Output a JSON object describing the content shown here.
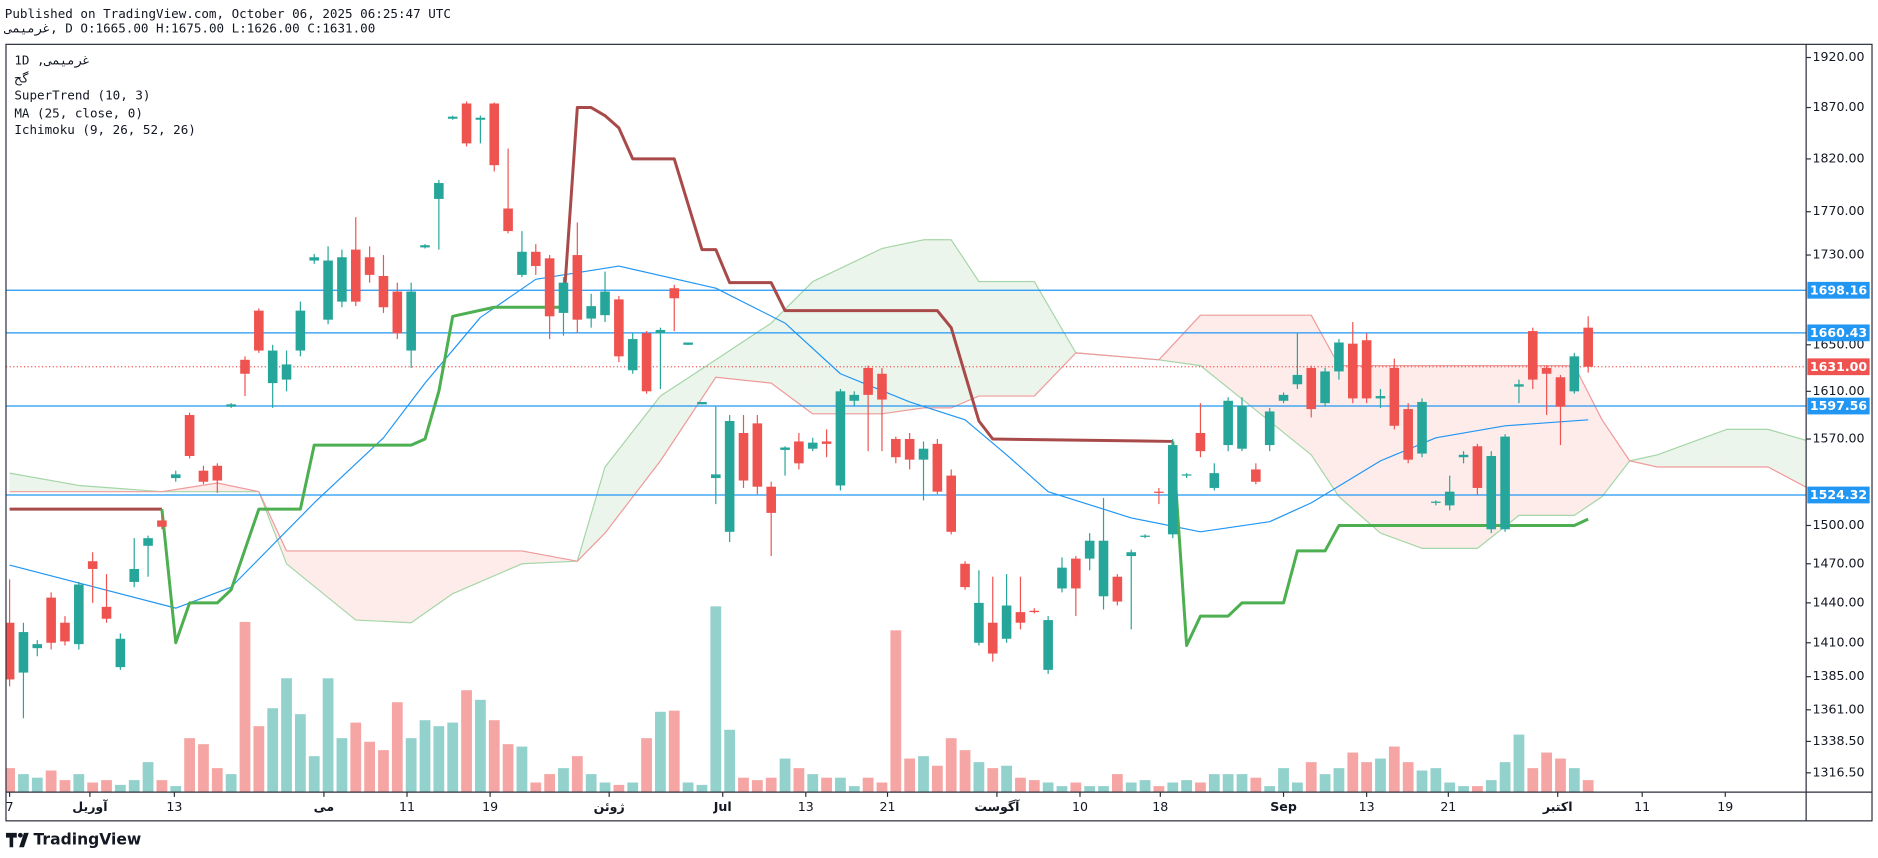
{
  "header": {
    "published": "Published on TradingView.com, October 06, 2025 06:25:47 UTC",
    "symbol_line": "غرمیمی, D O:1665.00 H:1675.00 L:1626.00 C:1631.00"
  },
  "footer": {
    "brand": "TradingView"
  },
  "chart_data": {
    "type": "candlestick",
    "legend_title": "1D  ,غرمیمی",
    "exchange": "گح",
    "indicator_labels": [
      "SuperTrend (10, 3)",
      "MA (25, close, 0)",
      "Ichimoku (9, 26, 52, 26)"
    ],
    "log_scale": true,
    "grid": false,
    "up_color": "#26a69a",
    "down_color": "#ef5350",
    "volume_up_color": "#93d2cc",
    "volume_down_color": "#f5a6a4",
    "xlim": [
      -0.26,
      129.74
    ],
    "ylim": [
      1303.2,
      1933.4
    ],
    "yticks": [
      {
        "value": 1920,
        "label": "1920.00"
      },
      {
        "value": 1870,
        "label": "1870.00"
      },
      {
        "value": 1820,
        "label": "1820.00"
      },
      {
        "value": 1770,
        "label": "1770.00"
      },
      {
        "value": 1730,
        "label": "1730.00"
      },
      {
        "value": 1650,
        "label": "1650.00"
      },
      {
        "value": 1610,
        "label": "1610.00"
      },
      {
        "value": 1570,
        "label": "1570.00"
      },
      {
        "value": 1500,
        "label": "1500.00"
      },
      {
        "value": 1470,
        "label": "1470.00"
      },
      {
        "value": 1440,
        "label": "1440.00"
      },
      {
        "value": 1410,
        "label": "1410.00"
      },
      {
        "value": 1385,
        "label": "1385.00"
      },
      {
        "value": 1361,
        "label": "1361.00"
      },
      {
        "value": 1338.5,
        "label": "1338.50"
      },
      {
        "value": 1316.5,
        "label": "1316.50"
      }
    ],
    "xticks": [
      {
        "value": 0,
        "label": "7"
      },
      {
        "value": 5.8,
        "label": "آوریل"
      },
      {
        "value": 11.9,
        "label": "13"
      },
      {
        "value": 22.7,
        "label": "می"
      },
      {
        "value": 28.7,
        "label": "11"
      },
      {
        "value": 34.7,
        "label": "19"
      },
      {
        "value": 43.3,
        "label": "ژوئن"
      },
      {
        "value": 51.5,
        "label": "Jul"
      },
      {
        "value": 57.5,
        "label": "13"
      },
      {
        "value": 63.4,
        "label": "21"
      },
      {
        "value": 71.3,
        "label": "آگوست"
      },
      {
        "value": 77.3,
        "label": "10"
      },
      {
        "value": 83.1,
        "label": "18"
      },
      {
        "value": 92,
        "label": "Sep"
      },
      {
        "value": 98,
        "label": "13"
      },
      {
        "value": 103.9,
        "label": "21"
      },
      {
        "value": 111.8,
        "label": "اکتبر"
      },
      {
        "value": 117.9,
        "label": "11"
      },
      {
        "value": 123.9,
        "label": "19"
      }
    ],
    "open": [
      1425,
      1388,
      1406,
      1444,
      1425,
      1409,
      1472,
      1437,
      1392,
      1456,
      1484,
      1504,
      1538,
      1590,
      1544,
      1548,
      1597,
      1637,
      1680,
      1617,
      1620,
      1645,
      1725,
      1672,
      1688,
      1735,
      1728,
      1711,
      1697,
      1645,
      1737,
      1782,
      1859,
      1874,
      1858,
      1874,
      1773,
      1712,
      1733,
      1727,
      1678,
      1730,
      1673,
      1676,
      1690,
      1628,
      1660,
      1660,
      1700,
      1650,
      1599,
      1538,
      1495,
      1575,
      1583,
      1531,
      1561,
      1568,
      1562,
      1568,
      1532,
      1602,
      1630,
      1625,
      1570,
      1570,
      1553,
      1566,
      1540,
      1470,
      1410,
      1425,
      1413,
      1433,
      1434,
      1390,
      1451,
      1474,
      1474,
      1445,
      1460,
      1476,
      1491,
      1527,
      1493,
      1540,
      1575,
      1530,
      1565,
      1562,
      1545,
      1565,
      1602,
      1616,
      1630,
      1600,
      1627,
      1651,
      1654,
      1604,
      1630,
      1595,
      1558,
      1518,
      1516,
      1555,
      1564,
      1497,
      1497,
      1614,
      1662,
      1630,
      1622,
      1610,
      1665
    ],
    "high": [
      1458,
      1425,
      1412,
      1448,
      1430,
      1456,
      1479,
      1462,
      1417,
      1490,
      1492,
      1508,
      1544,
      1592,
      1548,
      1550,
      1600,
      1640,
      1682,
      1650,
      1645,
      1688,
      1731,
      1738,
      1735,
      1765,
      1738,
      1730,
      1705,
      1705,
      1740,
      1800,
      1862,
      1876,
      1862,
      1875,
      1830,
      1752,
      1740,
      1730,
      1710,
      1760,
      1695,
      1715,
      1693,
      1660,
      1662,
      1665,
      1703,
      1652,
      1601,
      1597,
      1590,
      1590,
      1590,
      1535,
      1564,
      1575,
      1571,
      1578,
      1612,
      1610,
      1632,
      1630,
      1572,
      1575,
      1568,
      1570,
      1545,
      1472,
      1465,
      1460,
      1462,
      1460,
      1436,
      1430,
      1475,
      1476,
      1494,
      1522,
      1462,
      1481,
      1493,
      1530,
      1570,
      1542,
      1600,
      1550,
      1605,
      1605,
      1550,
      1596,
      1609,
      1660,
      1632,
      1630,
      1655,
      1670,
      1660,
      1612,
      1638,
      1600,
      1604,
      1520,
      1540,
      1560,
      1566,
      1560,
      1574,
      1620,
      1665,
      1632,
      1624,
      1643,
      1675
    ],
    "low": [
      1378,
      1355,
      1400,
      1405,
      1408,
      1405,
      1440,
      1425,
      1390,
      1452,
      1460,
      1497,
      1535,
      1554,
      1533,
      1526,
      1596,
      1606,
      1643,
      1596,
      1610,
      1640,
      1722,
      1668,
      1683,
      1684,
      1705,
      1678,
      1655,
      1630,
      1736,
      1735,
      1858,
      1832,
      1835,
      1808,
      1750,
      1710,
      1712,
      1655,
      1658,
      1660,
      1665,
      1670,
      1635,
      1625,
      1608,
      1612,
      1662,
      1650,
      1599,
      1517,
      1487,
      1530,
      1525,
      1476,
      1540,
      1545,
      1560,
      1555,
      1528,
      1598,
      1560,
      1560,
      1550,
      1545,
      1520,
      1525,
      1493,
      1450,
      1408,
      1396,
      1410,
      1420,
      1432,
      1387,
      1448,
      1430,
      1465,
      1435,
      1438,
      1420,
      1490,
      1517,
      1490,
      1538,
      1555,
      1528,
      1560,
      1560,
      1533,
      1560,
      1600,
      1612,
      1588,
      1597,
      1620,
      1600,
      1600,
      1596,
      1578,
      1550,
      1555,
      1516,
      1512,
      1550,
      1524,
      1494,
      1495,
      1600,
      1612,
      1590,
      1565,
      1608,
      1626
    ],
    "close": [
      1383,
      1418,
      1409,
      1410,
      1411,
      1454,
      1466,
      1428,
      1413,
      1466,
      1490,
      1499,
      1541,
      1556,
      1535,
      1536,
      1599,
      1625,
      1645,
      1645,
      1633,
      1680,
      1728,
      1725,
      1728,
      1688,
      1712,
      1683,
      1660,
      1697,
      1739,
      1797,
      1861,
      1835,
      1860,
      1814,
      1752,
      1733,
      1720,
      1675,
      1705,
      1672,
      1684,
      1697,
      1640,
      1655,
      1610,
      1663,
      1691,
      1652,
      1601,
      1541,
      1585,
      1536,
      1531,
      1510,
      1563,
      1550,
      1567,
      1566,
      1610,
      1607,
      1607,
      1603,
      1555,
      1553,
      1562,
      1527,
      1495,
      1452,
      1440,
      1402,
      1438,
      1425,
      1433,
      1427,
      1467,
      1451,
      1488,
      1488,
      1441,
      1479,
      1492,
      1526,
      1565,
      1541,
      1560,
      1542,
      1602,
      1598,
      1535,
      1593,
      1607,
      1624,
      1595,
      1627,
      1652,
      1604,
      1604,
      1606,
      1581,
      1553,
      1601,
      1519,
      1527,
      1557,
      1530,
      1556,
      1572,
      1616,
      1620,
      1625,
      1597,
      1640,
      1631
    ],
    "volume": [
      20,
      15,
      12,
      18,
      10,
      15,
      8,
      10,
      6,
      10,
      25,
      10,
      5,
      45,
      40,
      20,
      15,
      142,
      55,
      70,
      95,
      65,
      30,
      95,
      45,
      58,
      42,
      35,
      75,
      45,
      60,
      55,
      58,
      85,
      77,
      60,
      40,
      38,
      8,
      15,
      20,
      30,
      15,
      8,
      6,
      8,
      45,
      67,
      68,
      8,
      6,
      155,
      52,
      12,
      10,
      12,
      28,
      20,
      15,
      12,
      12,
      5,
      12,
      8,
      135,
      28,
      30,
      22,
      45,
      35,
      25,
      20,
      22,
      12,
      10,
      8,
      5,
      8,
      5,
      5,
      15,
      8,
      10,
      5,
      8,
      10,
      8,
      15,
      15,
      15,
      12,
      5,
      20,
      8,
      25,
      15,
      20,
      33,
      25,
      28,
      38,
      25,
      18,
      20,
      8,
      5,
      5,
      10,
      25,
      48,
      20,
      33,
      28,
      20,
      10
    ],
    "hlines": [
      1698.16,
      1660.43,
      1597.56,
      1524.32
    ],
    "hline_color": "#2196f3",
    "last_price": {
      "value": 1631,
      "label": "1631.00"
    },
    "supertrend": [
      {
        "color": "#a94a4a",
        "x": [
          0,
          11
        ],
        "values": [
          1513,
          1513
        ]
      },
      {
        "color": "#4caf50",
        "x": [
          11,
          12,
          13,
          15,
          16,
          18,
          21,
          22,
          29,
          30,
          31,
          32,
          35,
          40
        ],
        "values": [
          1513,
          1410,
          1440,
          1440,
          1450,
          1513,
          1513,
          1565,
          1565,
          1570,
          1610,
          1675,
          1683,
          1683
        ]
      },
      {
        "color": "#a94a4a",
        "x": [
          40,
          41,
          42,
          43,
          44,
          45,
          48,
          50,
          51,
          52,
          55,
          56,
          67,
          68,
          70,
          71,
          84
        ],
        "values": [
          1683,
          1870,
          1870,
          1862,
          1850,
          1820,
          1820,
          1735,
          1735,
          1705,
          1705,
          1680,
          1680,
          1665,
          1585,
          1570,
          1568
        ]
      },
      {
        "color": "#4caf50",
        "x": [
          84,
          85,
          86,
          88,
          89,
          92,
          93,
          95,
          96,
          113,
          114
        ],
        "values": [
          1568,
          1408,
          1430,
          1430,
          1440,
          1440,
          1480,
          1480,
          1500,
          1500,
          1505
        ]
      }
    ],
    "ma": {
      "color": "#2196f3",
      "x": [
        0,
        12,
        16,
        22,
        27,
        30,
        34,
        38,
        44,
        51,
        56,
        60,
        65,
        69,
        72,
        75,
        81,
        86,
        91,
        94,
        99,
        103,
        108,
        114
      ],
      "values": [
        1469,
        1436,
        1452,
        1518,
        1571,
        1617,
        1674,
        1708,
        1720,
        1700,
        1669,
        1625,
        1601,
        1586,
        1557,
        1527,
        1506,
        1495,
        1503,
        1518,
        1552,
        1571,
        1581,
        1586
      ]
    },
    "ichimoku": {
      "x": [
        0,
        5,
        11,
        15,
        18,
        20,
        25,
        29,
        32,
        37,
        41,
        43,
        47,
        51,
        55,
        58,
        63,
        66,
        68,
        70,
        74,
        77,
        83,
        86,
        94,
        96,
        99,
        102,
        106,
        109,
        113,
        115,
        117,
        119,
        124,
        127,
        130
      ],
      "span_a": [
        1542,
        1532,
        1527,
        1527,
        1527,
        1470,
        1427,
        1425,
        1447,
        1470,
        1472,
        1547,
        1606,
        1637,
        1669,
        1706,
        1736,
        1744,
        1744,
        1706,
        1706,
        1643,
        1637,
        1632,
        1557,
        1523,
        1494,
        1482,
        1482,
        1508,
        1508,
        1523,
        1552,
        1557,
        1578,
        1578,
        1568
      ],
      "span_b": [
        1527,
        1527,
        1527,
        1534,
        1527,
        1480,
        1480,
        1480,
        1480,
        1480,
        1472,
        1494,
        1552,
        1622,
        1617,
        1591,
        1591,
        1596,
        1596,
        1606,
        1606,
        1643,
        1637,
        1676,
        1676,
        1632,
        1632,
        1632,
        1632,
        1632,
        1632,
        1586,
        1552,
        1547,
        1547,
        1547,
        1529
      ],
      "a_color": "#a5d6a7",
      "b_color": "#ef9a9a",
      "up_fill": "#43a047",
      "down_fill": "#f44336"
    }
  }
}
